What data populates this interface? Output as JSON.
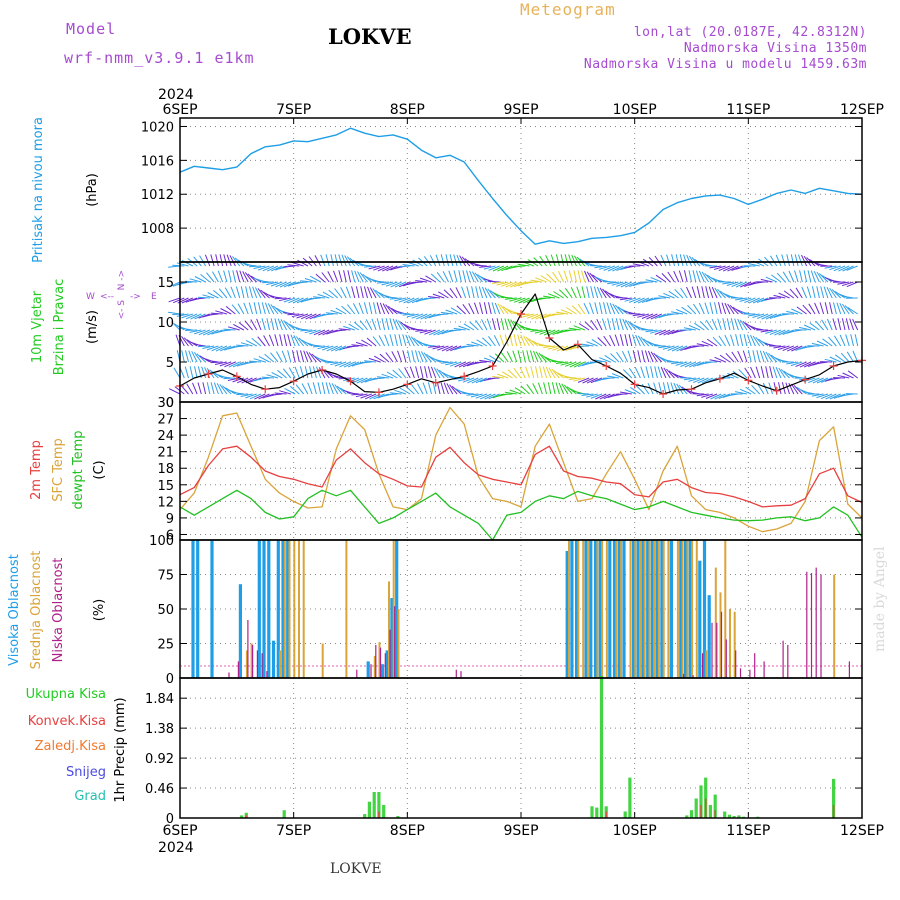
{
  "header": {
    "model_label": "Model",
    "model_name": "wrf-nmm_v3.9.1  e1km",
    "station": "LOKVE",
    "meteogram": "Meteogram",
    "lonlat": "lon,lat (20.0187E, 42.8312N)",
    "elevation": "Nadmorska Visina 1350m",
    "model_elevation": "Nadmorska Visina u modelu 1459.63m",
    "made_by": "made by Angel",
    "bottom_station": "LOKVE"
  },
  "colors": {
    "pressure": "#1e9ee6",
    "wind": "#22cc22",
    "temp2m": "#e84040",
    "sfc": "#d9a43a",
    "dewpt": "#22c022",
    "high_cloud": "#1e9ee6",
    "mid_cloud": "#d9a43a",
    "low_cloud": "#b0208a",
    "total_precip": "#22cc22",
    "conv_precip": "#e84040",
    "frz_precip": "#f07a30",
    "snow": "#4a4ae0",
    "hail": "#22c0b0",
    "model": "#a64bd0"
  },
  "chart_data": [
    {
      "type": "line",
      "panel": "pressure",
      "ylabel": "Pritisak na nivou mora",
      "unit": "(hPa)",
      "ylim": [
        1004,
        1021
      ],
      "yticks": [
        1008,
        1012,
        1016,
        1020
      ],
      "x_top_labels": [
        "6SEP",
        "7SEP",
        "8SEP",
        "9SEP",
        "10SEP",
        "11SEP",
        "12SEP"
      ],
      "x_top_year": "2024",
      "grid": true,
      "series": [
        {
          "x": [
            0,
            3,
            6,
            9,
            12,
            15,
            18,
            21,
            24,
            27,
            30,
            33,
            36,
            39,
            42,
            45,
            48,
            51,
            54,
            57,
            60,
            63,
            66,
            69,
            72,
            75,
            78,
            81,
            84,
            87,
            90,
            93,
            96,
            99,
            102,
            105,
            108,
            111,
            114,
            117,
            120,
            123,
            126,
            129,
            132,
            135,
            138,
            141,
            144
          ],
          "y": [
            1014.6,
            1015.3,
            1015.1,
            1014.9,
            1015.2,
            1016.8,
            1017.6,
            1017.8,
            1018.3,
            1018.2,
            1018.6,
            1019.0,
            1019.8,
            1019.2,
            1018.8,
            1019.0,
            1018.5,
            1017.2,
            1016.3,
            1016.6,
            1015.8,
            1013.6,
            1011.5,
            1009.5,
            1007.7,
            1006.1,
            1006.5,
            1006.2,
            1006.4,
            1006.8,
            1006.9,
            1007.1,
            1007.5,
            1008.6,
            1010.2,
            1011.0,
            1011.5,
            1011.8,
            1011.9,
            1011.5,
            1010.8,
            1011.4,
            1012.1,
            1012.5,
            1012.1,
            1012.7,
            1012.4,
            1012.1,
            1012.0
          ]
        }
      ]
    },
    {
      "type": "line",
      "panel": "wind",
      "ylabel": "10m Vjetar Brzina i Pravac",
      "unit": "(m/s)",
      "ylim": [
        0,
        17.5
      ],
      "yticks": [
        0,
        5,
        10,
        15
      ],
      "compass": {
        "n": "N",
        "s": "S",
        "e": "E",
        "w": "W"
      },
      "grid": true,
      "series": [
        {
          "name": "speed",
          "x": [
            0,
            3,
            6,
            9,
            12,
            15,
            18,
            21,
            24,
            27,
            30,
            33,
            36,
            39,
            42,
            45,
            48,
            51,
            54,
            57,
            60,
            63,
            66,
            69,
            72,
            75,
            78,
            81,
            84,
            87,
            90,
            93,
            96,
            99,
            102,
            105,
            108,
            111,
            114,
            117,
            120,
            123,
            126,
            129,
            132,
            135,
            138,
            141,
            144
          ],
          "y": [
            2.0,
            3.0,
            3.5,
            4.0,
            3.2,
            2.2,
            1.6,
            1.8,
            2.6,
            3.5,
            4.0,
            3.5,
            2.6,
            1.3,
            1.2,
            1.6,
            2.2,
            2.9,
            2.4,
            2.8,
            3.2,
            3.8,
            4.5,
            7.5,
            11.0,
            13.5,
            8.0,
            6.5,
            7.2,
            5.3,
            4.5,
            3.6,
            2.2,
            1.8,
            1.0,
            1.5,
            1.6,
            2.4,
            2.9,
            3.6,
            2.7,
            2.0,
            1.4,
            2.1,
            2.8,
            3.4,
            4.5,
            5.0,
            5.2
          ]
        }
      ]
    },
    {
      "type": "line",
      "panel": "temperature",
      "ylabels": [
        "2m Temp",
        "SFC Temp",
        "dewpt Temp"
      ],
      "unit": "(C)",
      "ylim": [
        5,
        30
      ],
      "yticks": [
        6,
        9,
        12,
        15,
        18,
        21,
        24,
        27,
        30
      ],
      "grid": true,
      "series": [
        {
          "name": "2m Temp",
          "x": [
            0,
            3,
            6,
            9,
            12,
            15,
            18,
            21,
            24,
            27,
            30,
            33,
            36,
            39,
            42,
            45,
            48,
            51,
            54,
            57,
            60,
            63,
            66,
            69,
            72,
            75,
            78,
            81,
            84,
            87,
            90,
            93,
            96,
            99,
            102,
            105,
            108,
            111,
            114,
            117,
            120,
            123,
            126,
            129,
            132,
            135,
            138,
            141,
            144
          ],
          "y": [
            13.2,
            14.5,
            18.5,
            21.5,
            22.0,
            20.0,
            17.5,
            16.5,
            16.0,
            15.2,
            14.6,
            19.5,
            21.5,
            19.0,
            17.0,
            16.0,
            14.8,
            14.6,
            20.0,
            21.8,
            19.0,
            16.8,
            16.0,
            15.5,
            15.0,
            20.5,
            22.0,
            17.5,
            16.5,
            16.2,
            15.5,
            15.2,
            13.2,
            12.8,
            15.5,
            16.0,
            14.5,
            13.6,
            13.4,
            12.8,
            12.0,
            11.0,
            11.2,
            11.3,
            12.5,
            17.0,
            18.0,
            13.0,
            11.8
          ]
        },
        {
          "name": "SFC Temp",
          "x": [
            0,
            3,
            6,
            9,
            12,
            15,
            18,
            21,
            24,
            27,
            30,
            33,
            36,
            39,
            42,
            45,
            48,
            51,
            54,
            57,
            60,
            63,
            66,
            69,
            72,
            75,
            78,
            81,
            84,
            87,
            90,
            93,
            96,
            99,
            102,
            105,
            108,
            111,
            114,
            117,
            120,
            123,
            126,
            129,
            132,
            135,
            138,
            141,
            144
          ],
          "y": [
            10.5,
            13.5,
            20.0,
            27.5,
            28.0,
            22.0,
            16.0,
            13.5,
            12.0,
            10.8,
            11.0,
            21.5,
            27.5,
            25.0,
            17.0,
            11.0,
            10.5,
            12.5,
            24.0,
            29.0,
            26.0,
            16.5,
            12.5,
            12.0,
            11.0,
            22.0,
            26.0,
            19.0,
            12.0,
            12.5,
            17.0,
            21.0,
            16.0,
            10.5,
            17.5,
            22.0,
            13.0,
            10.5,
            10.0,
            9.0,
            7.5,
            6.5,
            7.0,
            8.0,
            12.0,
            23.0,
            25.5,
            11.5,
            9.0
          ]
        },
        {
          "name": "dewpt Temp",
          "x": [
            0,
            3,
            6,
            9,
            12,
            15,
            18,
            21,
            24,
            27,
            30,
            33,
            36,
            39,
            42,
            45,
            48,
            51,
            54,
            57,
            60,
            63,
            66,
            69,
            72,
            75,
            78,
            81,
            84,
            87,
            90,
            93,
            96,
            99,
            102,
            105,
            108,
            111,
            114,
            117,
            120,
            123,
            126,
            129,
            132,
            135,
            138,
            141,
            144
          ],
          "y": [
            11.0,
            9.5,
            11.0,
            12.5,
            14.0,
            12.5,
            10.0,
            8.8,
            9.2,
            12.5,
            14.0,
            13.0,
            14.0,
            11.0,
            8.0,
            9.0,
            10.5,
            12.0,
            13.5,
            11.0,
            9.5,
            8.0,
            5.0,
            9.5,
            10.0,
            12.0,
            13.0,
            12.5,
            13.8,
            13.0,
            12.5,
            11.5,
            10.5,
            11.0,
            12.0,
            11.0,
            10.0,
            9.5,
            9.0,
            8.6,
            8.5,
            8.6,
            9.0,
            9.2,
            8.5,
            9.0,
            11.0,
            9.5,
            5.5
          ]
        }
      ]
    },
    {
      "type": "bar",
      "panel": "clouds",
      "ylabels": [
        "Visoka Oblacnost",
        "Srednja Oblacnost",
        "Niska Oblacnost"
      ],
      "unit": "(%)",
      "ylim": [
        0,
        100
      ],
      "yticks": [
        0,
        25,
        50,
        75,
        100
      ],
      "grid": true,
      "series": [
        {
          "name": "Visoka Oblacnost",
          "x": [
            3,
            4,
            7,
            13,
            17,
            18,
            19,
            20,
            21,
            22,
            23,
            40,
            43,
            44,
            45,
            46,
            82,
            83,
            84,
            86,
            87,
            88,
            89,
            91,
            92,
            93,
            94,
            96,
            97,
            98,
            99,
            100,
            101,
            102,
            104,
            106,
            107,
            108,
            110,
            111,
            112
          ],
          "y": [
            100,
            100,
            100,
            68,
            100,
            100,
            100,
            27,
            100,
            100,
            100,
            12,
            10,
            20,
            58,
            100,
            92,
            100,
            100,
            100,
            100,
            100,
            100,
            100,
            100,
            100,
            100,
            100,
            100,
            100,
            100,
            100,
            100,
            100,
            100,
            100,
            100,
            100,
            85,
            100,
            60
          ]
        },
        {
          "name": "Srednja Oblacnost",
          "x": [
            14,
            15,
            21,
            22,
            23,
            24,
            25,
            26,
            30,
            35,
            41,
            42,
            44,
            45,
            46,
            82,
            84,
            85,
            86,
            88,
            89,
            90,
            92,
            93,
            95,
            96,
            97,
            98,
            99,
            100,
            101,
            102,
            103,
            105,
            106,
            107,
            108,
            109,
            111,
            113,
            114,
            115,
            116,
            117,
            138
          ],
          "y": [
            20,
            25,
            20,
            100,
            100,
            100,
            100,
            100,
            25,
            100,
            16,
            26,
            70,
            100,
            50,
            100,
            100,
            100,
            100,
            100,
            100,
            100,
            100,
            100,
            100,
            100,
            100,
            100,
            100,
            100,
            100,
            100,
            100,
            100,
            100,
            100,
            100,
            100,
            20,
            80,
            62,
            100,
            50,
            48,
            75
          ]
        },
        {
          "name": "Niska Oblacnost",
          "x": [
            10,
            12,
            14,
            15,
            16,
            17,
            18,
            37,
            40,
            41,
            42,
            43,
            44,
            45,
            58,
            59,
            106,
            108,
            110,
            112,
            113,
            114,
            115,
            117,
            118,
            120,
            121,
            123,
            127,
            128,
            132,
            133,
            134,
            135,
            141
          ],
          "y": [
            4,
            12,
            42,
            24,
            20,
            18,
            5,
            6,
            10,
            24,
            22,
            18,
            35,
            52,
            6,
            5,
            3,
            2,
            18,
            40,
            40,
            48,
            28,
            20,
            7,
            6,
            18,
            12,
            27,
            24,
            77,
            76,
            80,
            75,
            12
          ]
        }
      ]
    },
    {
      "type": "bar",
      "panel": "precipitation",
      "ylabels": [
        "Ukupna Kisa",
        "Konvek.Kisa",
        "Zaledj.Kisa",
        "Snijeg",
        "Grad"
      ],
      "unit": "1hr Precip (mm)",
      "ylim": [
        0,
        2.15
      ],
      "yticks": [
        0,
        0.46,
        0.92,
        1.38,
        1.84
      ],
      "x_bottom_labels": [
        "6SEP",
        "7SEP",
        "8SEP",
        "9SEP",
        "10SEP",
        "11SEP",
        "12SEP"
      ],
      "x_bottom_year": "2024",
      "grid": true,
      "series": [
        {
          "name": "Ukupna Kisa",
          "x": [
            13,
            14,
            22,
            39,
            40,
            41,
            42,
            43,
            46,
            87,
            88,
            89,
            90,
            94,
            95,
            107,
            108,
            109,
            110,
            111,
            112,
            113,
            115,
            116,
            117,
            118,
            119,
            122,
            138
          ],
          "y": [
            0.04,
            0.08,
            0.12,
            0.06,
            0.25,
            0.4,
            0.4,
            0.2,
            0.03,
            0.18,
            0.16,
            2.18,
            0.18,
            0.1,
            0.62,
            0.04,
            0.12,
            0.3,
            0.5,
            0.62,
            0.2,
            0.36,
            0.1,
            0.05,
            0.03,
            0.04,
            0.02,
            0.02,
            0.6
          ]
        },
        {
          "name": "Konvek.Kisa",
          "x": [
            14,
            42,
            90,
            110,
            111,
            113,
            138
          ],
          "y": [
            0.04,
            0.1,
            0.1,
            0.2,
            0.3,
            0.12,
            0.2
          ]
        }
      ]
    }
  ]
}
